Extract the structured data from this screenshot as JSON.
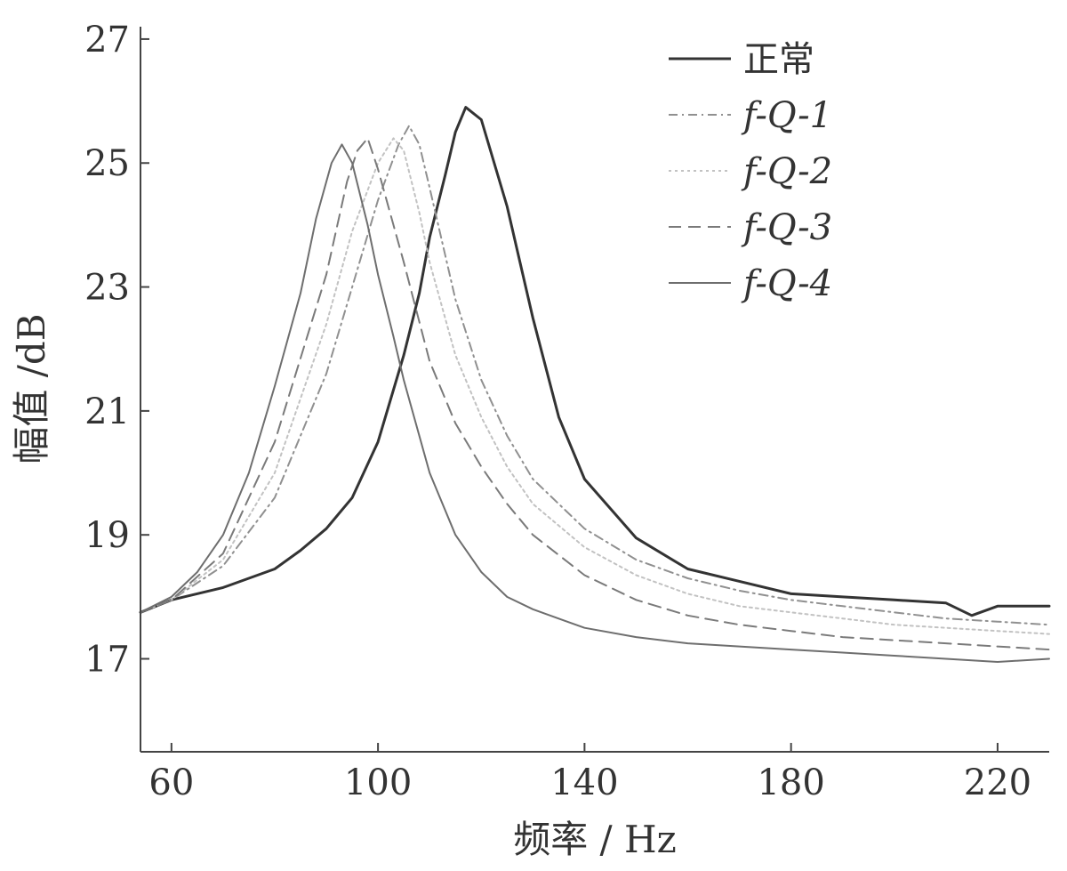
{
  "chart_data": {
    "type": "line",
    "xlabel": "频率 / Hz",
    "ylabel": "幅值 /dB",
    "xlim": [
      54,
      230
    ],
    "ylim": [
      15.5,
      27.2
    ],
    "xticks": [
      60,
      100,
      140,
      180,
      220
    ],
    "yticks": [
      17,
      19,
      21,
      23,
      25,
      27
    ],
    "grid": false,
    "legend_position": "top-right",
    "series": [
      {
        "name": "正常",
        "color": "#333333",
        "dash": "",
        "width": 3,
        "x": [
          54,
          60,
          70,
          80,
          85,
          90,
          95,
          100,
          105,
          108,
          110,
          113,
          115,
          117,
          120,
          125,
          130,
          135,
          140,
          150,
          160,
          170,
          180,
          190,
          200,
          210,
          215,
          220,
          230
        ],
        "y": [
          17.75,
          17.95,
          18.15,
          18.45,
          18.75,
          19.1,
          19.6,
          20.5,
          21.9,
          22.9,
          23.8,
          24.8,
          25.5,
          25.9,
          25.7,
          24.3,
          22.5,
          20.9,
          19.9,
          18.95,
          18.45,
          18.25,
          18.05,
          18.0,
          17.95,
          17.9,
          17.7,
          17.85,
          17.85
        ]
      },
      {
        "name": "f-Q-1",
        "color": "#909090",
        "dash": "10 5 2 5",
        "width": 2,
        "x": [
          54,
          60,
          70,
          80,
          90,
          95,
          100,
          104,
          106,
          108,
          110,
          115,
          120,
          125,
          130,
          140,
          150,
          160,
          170,
          180,
          190,
          200,
          210,
          220,
          230
        ],
        "y": [
          17.75,
          17.95,
          18.5,
          19.6,
          21.6,
          23.0,
          24.4,
          25.3,
          25.6,
          25.3,
          24.6,
          22.8,
          21.5,
          20.6,
          19.9,
          19.1,
          18.6,
          18.3,
          18.1,
          17.95,
          17.85,
          17.75,
          17.65,
          17.6,
          17.55
        ]
      },
      {
        "name": "f-Q-2",
        "color": "#c2c2c2",
        "dash": "3 4",
        "width": 2,
        "x": [
          54,
          60,
          70,
          80,
          90,
          95,
          100,
          103,
          105,
          108,
          110,
          115,
          120,
          125,
          130,
          140,
          150,
          160,
          170,
          180,
          190,
          200,
          210,
          220,
          230
        ],
        "y": [
          17.75,
          17.95,
          18.6,
          20.0,
          22.4,
          23.9,
          25.0,
          25.4,
          25.2,
          24.2,
          23.4,
          21.9,
          20.9,
          20.1,
          19.5,
          18.8,
          18.35,
          18.05,
          17.85,
          17.75,
          17.65,
          17.55,
          17.5,
          17.45,
          17.4
        ]
      },
      {
        "name": "f-Q-3",
        "color": "#7a7a7a",
        "dash": "14 8",
        "width": 2,
        "x": [
          54,
          60,
          70,
          80,
          90,
          94,
          96,
          98,
          100,
          103,
          105,
          110,
          115,
          120,
          125,
          130,
          140,
          150,
          160,
          170,
          180,
          190,
          200,
          210,
          220,
          230
        ],
        "y": [
          17.75,
          17.95,
          18.7,
          20.5,
          23.2,
          24.7,
          25.2,
          25.4,
          24.9,
          24.0,
          23.4,
          21.8,
          20.8,
          20.1,
          19.5,
          19.0,
          18.35,
          17.95,
          17.7,
          17.55,
          17.45,
          17.35,
          17.3,
          17.25,
          17.2,
          17.15
        ]
      },
      {
        "name": "f-Q-4",
        "color": "#6e6e6e",
        "dash": "",
        "width": 2,
        "x": [
          54,
          60,
          65,
          70,
          75,
          80,
          85,
          88,
          91,
          93,
          95,
          98,
          100,
          103,
          105,
          110,
          115,
          120,
          125,
          130,
          140,
          150,
          160,
          170,
          180,
          190,
          200,
          210,
          220,
          230
        ],
        "y": [
          17.75,
          18.0,
          18.4,
          19.0,
          20.0,
          21.4,
          22.9,
          24.1,
          25.0,
          25.3,
          25.0,
          24.0,
          23.2,
          22.2,
          21.5,
          20.0,
          19.0,
          18.4,
          18.0,
          17.8,
          17.5,
          17.35,
          17.25,
          17.2,
          17.15,
          17.1,
          17.05,
          17.0,
          16.95,
          17.0
        ]
      }
    ]
  }
}
